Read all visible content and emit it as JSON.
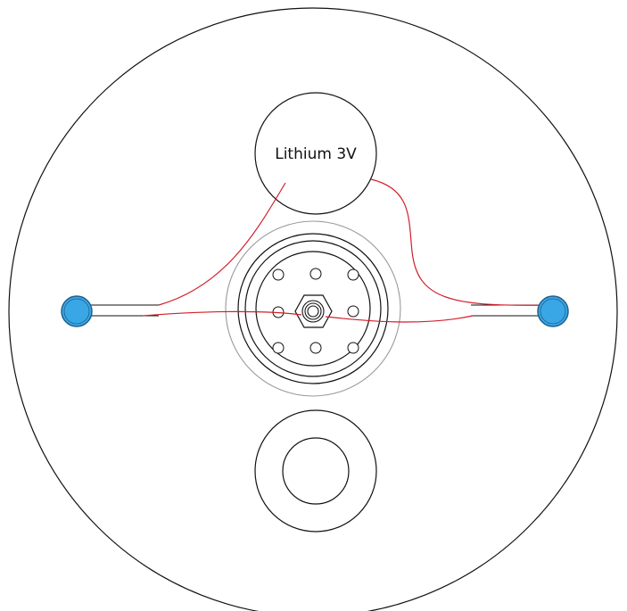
{
  "battery": {
    "label": "Lithium 3V"
  },
  "colors": {
    "outline": "#111111",
    "wire": "#d21f2b",
    "led_fill": "#39a7e6",
    "led_stroke": "#1f5f8c",
    "inner_ring": "#9a9a9a",
    "background": "#ffffff"
  },
  "components": [
    "outer-disc",
    "battery-cell",
    "left-led",
    "right-led",
    "center-hub",
    "hex-nut",
    "lower-port"
  ]
}
